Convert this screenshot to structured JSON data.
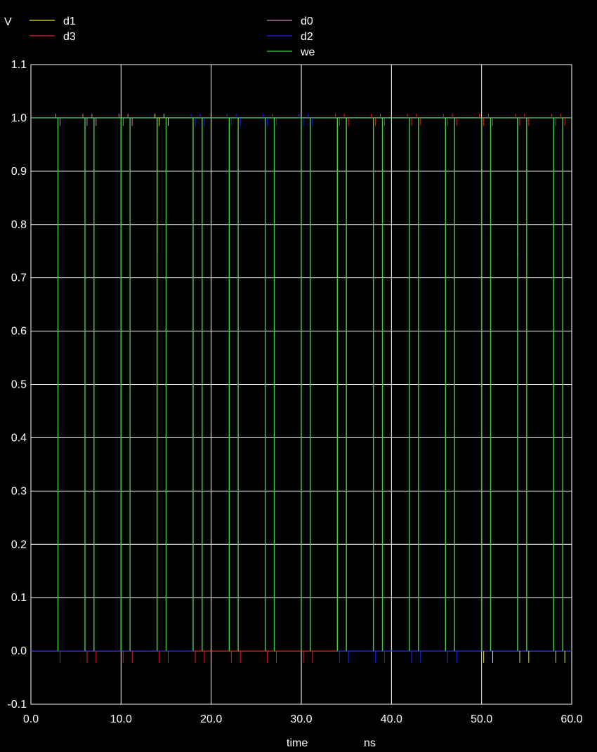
{
  "chart_data": {
    "type": "line",
    "title": "",
    "ylabel": "V",
    "xlabel": "time",
    "xunit": "ns",
    "xlim": [
      0,
      60
    ],
    "ylim": [
      -0.1,
      1.1
    ],
    "grid": true,
    "legend_position": "top",
    "background": "#000000",
    "xticks": [
      0,
      10,
      20,
      30,
      40,
      50,
      60
    ],
    "xtick_labels": [
      "0.0",
      "10.0",
      "20.0",
      "30.0",
      "40.0",
      "50.0",
      "60.0"
    ],
    "yticks": [
      -0.1,
      0.0,
      0.1,
      0.2,
      0.3,
      0.4,
      0.5,
      0.6,
      0.7,
      0.8,
      0.9,
      1.0,
      1.1
    ],
    "ytick_labels": [
      "-0.1",
      "0.0",
      "0.1",
      "0.2",
      "0.3",
      "0.4",
      "0.5",
      "0.6",
      "0.7",
      "0.8",
      "0.9",
      "1.0",
      "1.1"
    ],
    "series": [
      {
        "name": "d1",
        "color": "#e0e040",
        "points": [
          [
            0,
            0
          ],
          [
            14,
            0
          ],
          [
            14,
            1
          ],
          [
            34,
            1
          ],
          [
            34,
            1
          ],
          [
            50,
            1
          ],
          [
            50,
            0
          ],
          [
            60,
            0
          ]
        ],
        "glitches": [
          [
            14,
            0.74
          ]
        ]
      },
      {
        "name": "d3",
        "color": "#e02020",
        "points": [
          [
            0,
            0
          ],
          [
            34,
            0
          ],
          [
            34,
            1
          ],
          [
            60,
            1
          ]
        ],
        "glitches": [
          [
            34,
            0.74
          ]
        ]
      },
      {
        "name": "d0",
        "color": "#c080c0",
        "points": [
          [
            0,
            1
          ],
          [
            14,
            1
          ],
          [
            14,
            1
          ],
          [
            50,
            1
          ],
          [
            54,
            1
          ],
          [
            54,
            0
          ],
          [
            60,
            0
          ]
        ],
        "glitches": [
          [
            54,
            0.74
          ]
        ]
      },
      {
        "name": "d2",
        "color": "#2020ff",
        "points": [
          [
            0,
            0
          ],
          [
            18,
            0
          ],
          [
            18,
            1
          ],
          [
            34,
            1
          ],
          [
            34,
            0
          ],
          [
            60,
            0
          ]
        ],
        "glitches": [
          [
            34,
            0.03
          ]
        ]
      },
      {
        "name": "we",
        "color": "#40d040",
        "pulses": [
          3,
          6,
          7,
          10,
          11,
          14,
          15,
          18,
          19,
          22,
          23,
          26,
          27,
          30,
          31,
          34,
          35,
          38,
          39,
          42,
          43,
          46,
          47,
          50,
          51,
          54,
          55,
          58,
          59
        ],
        "high": 1.0,
        "low": 0.0
      }
    ]
  }
}
